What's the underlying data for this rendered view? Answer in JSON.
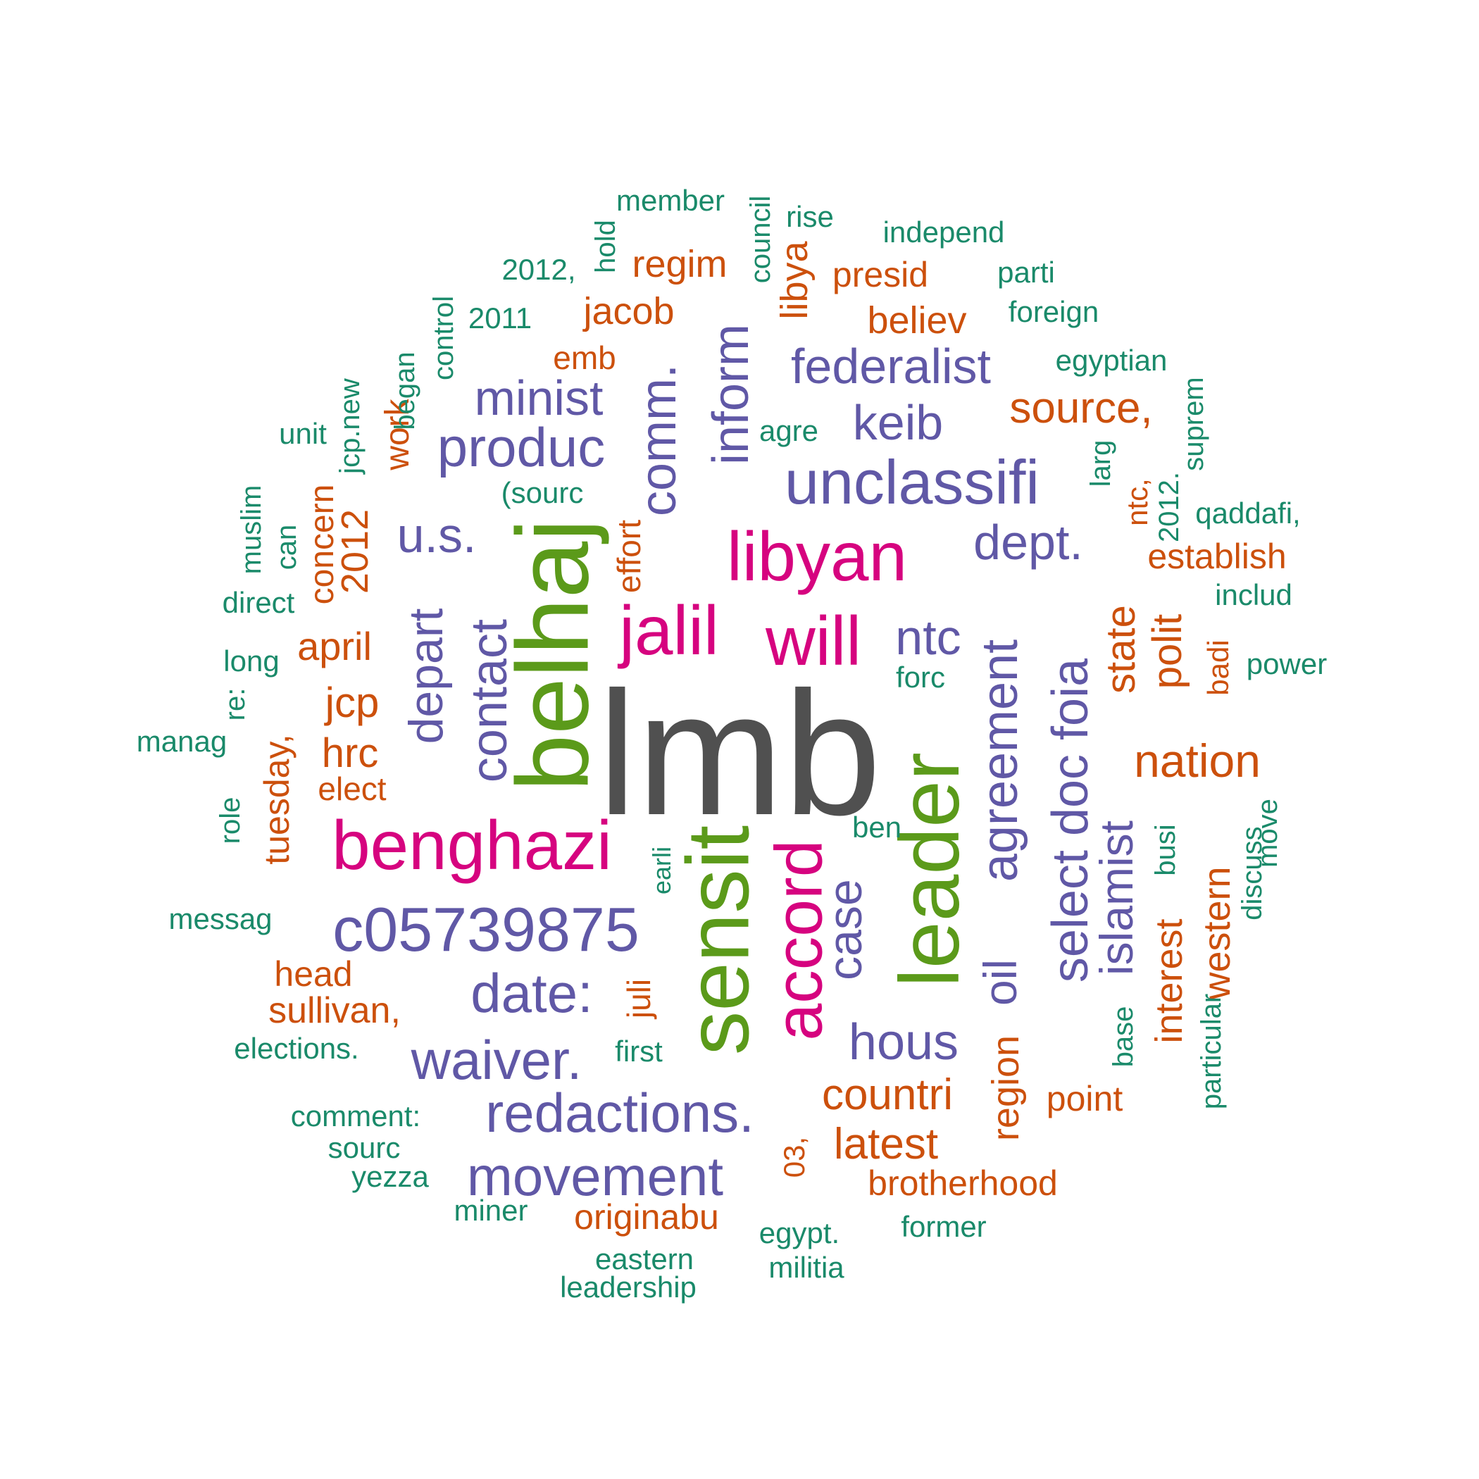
{
  "palette": {
    "top": "#505050",
    "pink": "#d6037f",
    "green": "#5b9a1a",
    "purple": "#6058a6",
    "orange": "#cc500c",
    "teal": "#1a8a6a"
  },
  "words": [
    {
      "text": "lmb",
      "color": "top"
    },
    {
      "text": "belhaj",
      "color": "green"
    },
    {
      "text": "sensit",
      "color": "green"
    },
    {
      "text": "leader",
      "color": "green"
    },
    {
      "text": "libyan",
      "color": "pink"
    },
    {
      "text": "jalil",
      "color": "pink"
    },
    {
      "text": "will",
      "color": "pink"
    },
    {
      "text": "benghazi",
      "color": "pink"
    },
    {
      "text": "accord",
      "color": "pink"
    },
    {
      "text": "unclassifi",
      "color": "purple"
    },
    {
      "text": "c05739875",
      "color": "purple"
    },
    {
      "text": "redactions.",
      "color": "purple"
    },
    {
      "text": "waiver.",
      "color": "purple"
    },
    {
      "text": "movement",
      "color": "purple"
    },
    {
      "text": "date:",
      "color": "purple"
    },
    {
      "text": "produc",
      "color": "purple"
    },
    {
      "text": "federalist",
      "color": "purple"
    },
    {
      "text": "minist",
      "color": "purple"
    },
    {
      "text": "dept.",
      "color": "purple"
    },
    {
      "text": "u.s.",
      "color": "purple"
    },
    {
      "text": "keib",
      "color": "purple"
    },
    {
      "text": "ntc",
      "color": "purple"
    },
    {
      "text": "hous",
      "color": "purple"
    },
    {
      "text": "inform",
      "color": "purple"
    },
    {
      "text": "comm.",
      "color": "purple"
    },
    {
      "text": "contact",
      "color": "purple"
    },
    {
      "text": "depart",
      "color": "purple"
    },
    {
      "text": "case",
      "color": "purple"
    },
    {
      "text": "agreement",
      "color": "purple"
    },
    {
      "text": "select doc foia",
      "color": "purple"
    },
    {
      "text": "islamist",
      "color": "purple"
    },
    {
      "text": "oil",
      "color": "purple"
    },
    {
      "text": "nation",
      "color": "orange"
    },
    {
      "text": "source,",
      "color": "orange"
    },
    {
      "text": "countri",
      "color": "orange"
    },
    {
      "text": "latest",
      "color": "orange"
    },
    {
      "text": "brotherhood",
      "color": "orange"
    },
    {
      "text": "originabu",
      "color": "orange"
    },
    {
      "text": "sullivan,",
      "color": "orange"
    },
    {
      "text": "regim",
      "color": "orange"
    },
    {
      "text": "jacob",
      "color": "orange"
    },
    {
      "text": "presid",
      "color": "orange"
    },
    {
      "text": "believ",
      "color": "orange"
    },
    {
      "text": "emb",
      "color": "orange"
    },
    {
      "text": "jcp",
      "color": "orange"
    },
    {
      "text": "hrc",
      "color": "orange"
    },
    {
      "text": "april",
      "color": "orange"
    },
    {
      "text": "elect",
      "color": "orange"
    },
    {
      "text": "head",
      "color": "orange"
    },
    {
      "text": "establish",
      "color": "orange"
    },
    {
      "text": "point",
      "color": "orange"
    },
    {
      "text": "libya",
      "color": "orange"
    },
    {
      "text": "state",
      "color": "orange"
    },
    {
      "text": "polit",
      "color": "orange"
    },
    {
      "text": "region",
      "color": "orange"
    },
    {
      "text": "interest",
      "color": "orange"
    },
    {
      "text": "western",
      "color": "orange"
    },
    {
      "text": "tuesday,",
      "color": "orange"
    },
    {
      "text": "2012",
      "color": "orange"
    },
    {
      "text": "concern",
      "color": "orange"
    },
    {
      "text": "work",
      "color": "orange"
    },
    {
      "text": "effort",
      "color": "orange"
    },
    {
      "text": "juli",
      "color": "orange"
    },
    {
      "text": "03,",
      "color": "orange"
    },
    {
      "text": "ntc,",
      "color": "orange"
    },
    {
      "text": "badi",
      "color": "orange"
    },
    {
      "text": "member",
      "color": "teal"
    },
    {
      "text": "rise",
      "color": "teal"
    },
    {
      "text": "independ",
      "color": "teal"
    },
    {
      "text": "2012,",
      "color": "teal"
    },
    {
      "text": "parti",
      "color": "teal"
    },
    {
      "text": "2011",
      "color": "teal"
    },
    {
      "text": "foreign",
      "color": "teal"
    },
    {
      "text": "egyptian",
      "color": "teal"
    },
    {
      "text": "agre",
      "color": "teal"
    },
    {
      "text": "unit",
      "color": "teal"
    },
    {
      "text": "(sourc",
      "color": "teal"
    },
    {
      "text": "qaddafi,",
      "color": "teal"
    },
    {
      "text": "includ",
      "color": "teal"
    },
    {
      "text": "direct",
      "color": "teal"
    },
    {
      "text": "long",
      "color": "teal"
    },
    {
      "text": "power",
      "color": "teal"
    },
    {
      "text": "forc",
      "color": "teal"
    },
    {
      "text": "manag",
      "color": "teal"
    },
    {
      "text": "ben",
      "color": "teal"
    },
    {
      "text": "messag",
      "color": "teal"
    },
    {
      "text": "elections.",
      "color": "teal"
    },
    {
      "text": "first",
      "color": "teal"
    },
    {
      "text": "comment:",
      "color": "teal"
    },
    {
      "text": "sourc",
      "color": "teal"
    },
    {
      "text": "yezza",
      "color": "teal"
    },
    {
      "text": "miner",
      "color": "teal"
    },
    {
      "text": "egypt.",
      "color": "teal"
    },
    {
      "text": "former",
      "color": "teal"
    },
    {
      "text": "eastern",
      "color": "teal"
    },
    {
      "text": "militia",
      "color": "teal"
    },
    {
      "text": "leadership",
      "color": "teal"
    },
    {
      "text": "council",
      "color": "teal"
    },
    {
      "text": "hold",
      "color": "teal"
    },
    {
      "text": "control",
      "color": "teal"
    },
    {
      "text": "began",
      "color": "teal"
    },
    {
      "text": "jcp.new",
      "color": "teal"
    },
    {
      "text": "muslim",
      "color": "teal"
    },
    {
      "text": "can",
      "color": "teal"
    },
    {
      "text": "re:",
      "color": "teal"
    },
    {
      "text": "role",
      "color": "teal"
    },
    {
      "text": "earli",
      "color": "teal"
    },
    {
      "text": "larg",
      "color": "teal"
    },
    {
      "text": "2012.",
      "color": "teal"
    },
    {
      "text": "suprem",
      "color": "teal"
    },
    {
      "text": "busi",
      "color": "teal"
    },
    {
      "text": "base",
      "color": "teal"
    },
    {
      "text": "particular",
      "color": "teal"
    },
    {
      "text": "discuss",
      "color": "teal"
    },
    {
      "text": "move",
      "color": "teal"
    }
  ]
}
